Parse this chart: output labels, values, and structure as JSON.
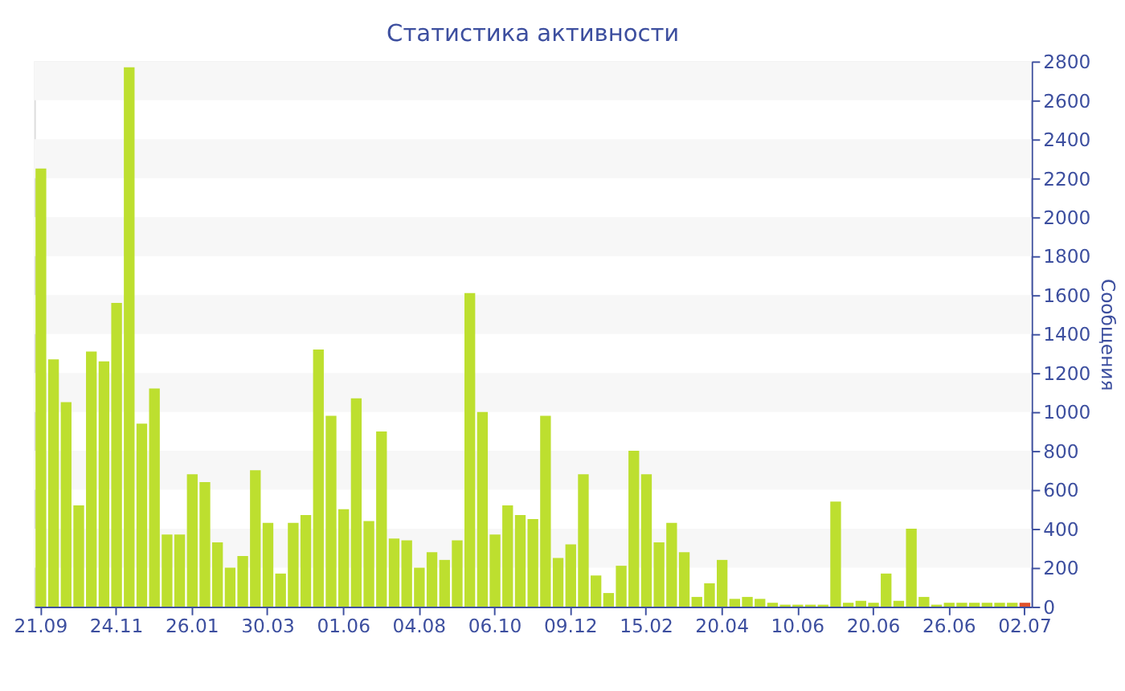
{
  "chart_data": {
    "type": "bar",
    "title": "Статистика активности",
    "ylabel": "Сообщения",
    "categories": [
      "21.09",
      null,
      null,
      null,
      null,
      null,
      "24.11",
      null,
      null,
      null,
      null,
      null,
      "26.01",
      null,
      null,
      null,
      null,
      null,
      "30.03",
      null,
      null,
      null,
      null,
      null,
      "01.06",
      null,
      null,
      null,
      null,
      null,
      "04.08",
      null,
      null,
      null,
      null,
      null,
      "06.10",
      null,
      null,
      null,
      null,
      null,
      "09.12",
      null,
      null,
      null,
      null,
      null,
      "15.02",
      null,
      null,
      null,
      null,
      null,
      "20.04",
      null,
      null,
      null,
      null,
      null,
      "10.06",
      null,
      null,
      null,
      null,
      null,
      "20.06",
      null,
      null,
      null,
      null,
      null,
      "26.06",
      null,
      null,
      null,
      null,
      null,
      "02.07"
    ],
    "values": [
      2250,
      1270,
      1050,
      520,
      1310,
      1260,
      1560,
      2770,
      940,
      1120,
      370,
      370,
      680,
      640,
      330,
      200,
      260,
      700,
      430,
      170,
      430,
      470,
      1320,
      980,
      500,
      1070,
      440,
      900,
      350,
      340,
      200,
      280,
      240,
      340,
      1610,
      1000,
      370,
      520,
      470,
      450,
      980,
      250,
      320,
      680,
      160,
      70,
      210,
      800,
      680,
      330,
      430,
      280,
      50,
      120,
      240,
      40,
      50,
      40,
      20,
      10,
      10,
      10,
      10,
      540,
      20,
      30,
      20,
      170,
      30,
      400,
      50,
      10,
      20,
      20,
      20,
      20,
      20,
      20,
      20
    ],
    "colors": [
      "#bddf2f",
      "#bddf2f",
      "#bddf2f",
      "#bddf2f",
      "#bddf2f",
      "#bddf2f",
      "#bddf2f",
      "#bddf2f",
      "#bddf2f",
      "#bddf2f",
      "#bddf2f",
      "#bddf2f",
      "#bddf2f",
      "#bddf2f",
      "#bddf2f",
      "#bddf2f",
      "#bddf2f",
      "#bddf2f",
      "#bddf2f",
      "#bddf2f",
      "#bddf2f",
      "#bddf2f",
      "#bddf2f",
      "#bddf2f",
      "#bddf2f",
      "#bddf2f",
      "#bddf2f",
      "#bddf2f",
      "#bddf2f",
      "#bddf2f",
      "#bddf2f",
      "#bddf2f",
      "#bddf2f",
      "#bddf2f",
      "#bddf2f",
      "#bddf2f",
      "#bddf2f",
      "#bddf2f",
      "#bddf2f",
      "#bddf2f",
      "#bddf2f",
      "#bddf2f",
      "#bddf2f",
      "#bddf2f",
      "#bddf2f",
      "#bddf2f",
      "#bddf2f",
      "#bddf2f",
      "#bddf2f",
      "#bddf2f",
      "#bddf2f",
      "#bddf2f",
      "#bddf2f",
      "#bddf2f",
      "#bddf2f",
      "#bddf2f",
      "#bddf2f",
      "#bddf2f",
      "#bddf2f",
      "#bddf2f",
      "#bddf2f",
      "#bddf2f",
      "#bddf2f",
      "#bddf2f",
      "#bddf2f",
      "#bddf2f",
      "#bddf2f",
      "#bddf2f",
      "#bddf2f",
      "#bddf2f",
      "#bddf2f",
      "#bddf2f",
      "#bddf2f",
      "#bddf2f",
      "#bddf2f",
      "#bddf2f",
      "#bddf2f",
      "#bddf2f",
      "#e0502a"
    ],
    "ylim": [
      0,
      2800
    ],
    "yticks": [
      0,
      200,
      400,
      600,
      800,
      1000,
      1200,
      1400,
      1600,
      1800,
      2000,
      2200,
      2400,
      2600,
      2800
    ],
    "grid": false
  }
}
